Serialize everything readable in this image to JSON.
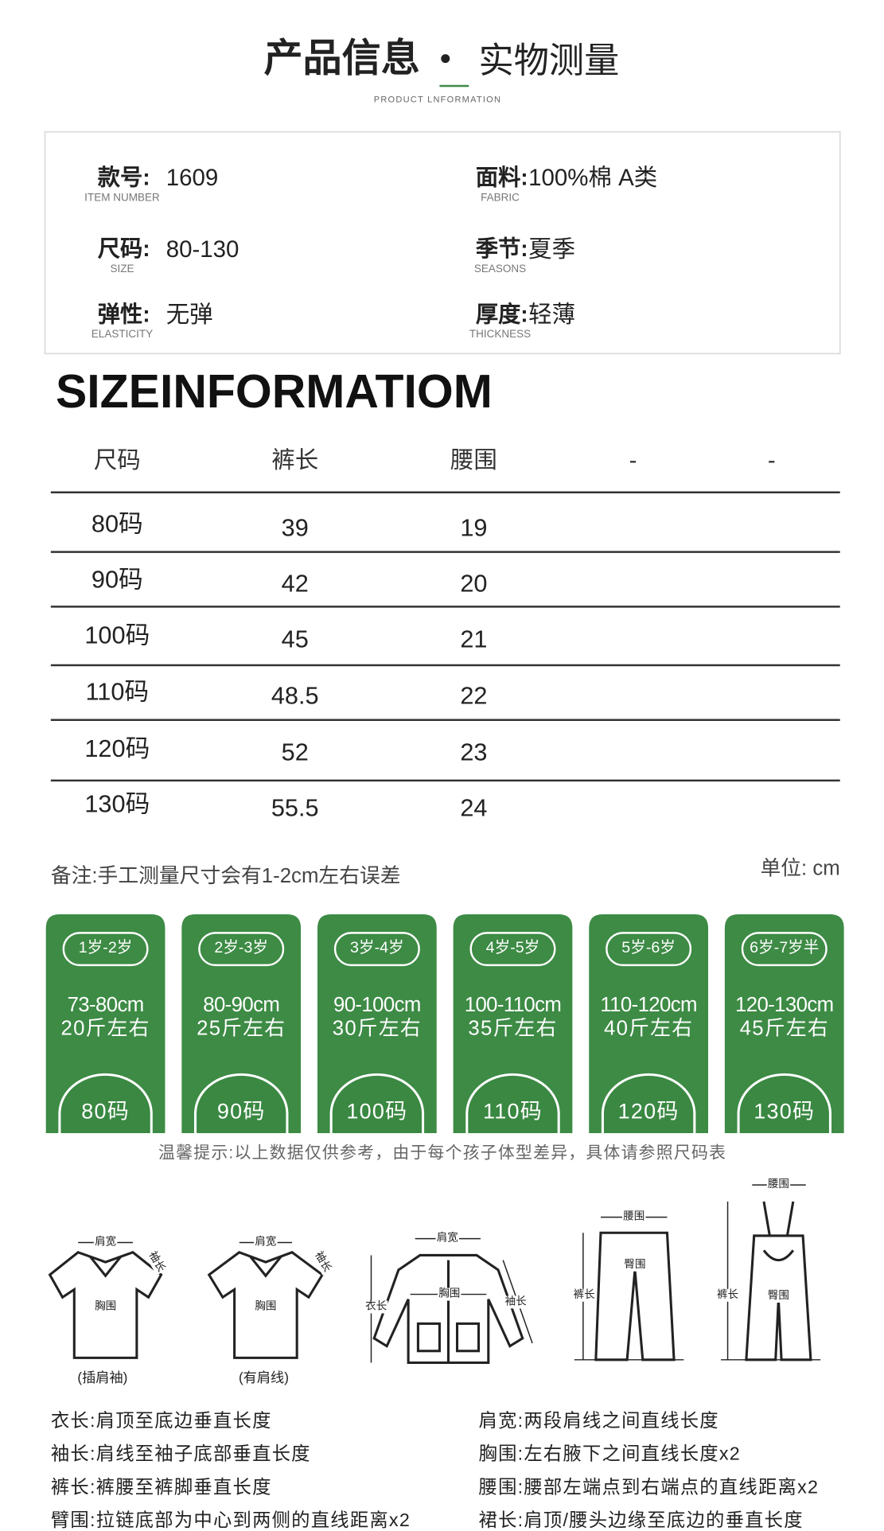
{
  "header": {
    "title": "产品信息",
    "subtitle": "实物测量",
    "english": "PRODUCT LNFORMATION"
  },
  "info": [
    {
      "label": "款号:",
      "english": "ITEM NUMBER",
      "value": "1609"
    },
    {
      "label": "面料:",
      "english": "FABRIC",
      "value": "100%棉  A类"
    },
    {
      "label": "尺码:",
      "english": "SIZE",
      "value": "80-130"
    },
    {
      "label": "季节:",
      "english": "SEASONS",
      "value": "夏季"
    },
    {
      "label": "弹性:",
      "english": "ELASTICITY",
      "value": "无弹"
    },
    {
      "label": "厚度:",
      "english": "THICKNESS",
      "value": "轻薄"
    }
  ],
  "size_table": {
    "title": "SIZEINFORMATIOM",
    "headers": [
      "尺码",
      "裤长",
      "腰围",
      "-",
      "-"
    ],
    "rows": [
      [
        "80码",
        "39",
        "19"
      ],
      [
        "90码",
        "42",
        "20"
      ],
      [
        "100码",
        "45",
        "21"
      ],
      [
        "110码",
        "48.5",
        "22"
      ],
      [
        "120码",
        "52",
        "23"
      ],
      [
        "130码",
        "55.5",
        "24"
      ]
    ]
  },
  "note": "备注:手工测量尺寸会有1-2cm左右误差",
  "unit": "单位: cm",
  "cards": [
    {
      "age": "1岁-2岁",
      "height": "73-80cm",
      "weight": "20斤左右",
      "size": "80码"
    },
    {
      "age": "2岁-3岁",
      "height": "80-90cm",
      "weight": "25斤左右",
      "size": "90码"
    },
    {
      "age": "3岁-4岁",
      "height": "90-100cm",
      "weight": "30斤左右",
      "size": "100码"
    },
    {
      "age": "4岁-5岁",
      "height": "100-110cm",
      "weight": "35斤左右",
      "size": "110码"
    },
    {
      "age": "5岁-6岁",
      "height": "110-120cm",
      "weight": "40斤左右",
      "size": "120码"
    },
    {
      "age": "6岁-7岁半",
      "height": "120-130cm",
      "weight": "45斤左右",
      "size": "130码"
    }
  ],
  "tip": "温馨提示:以上数据仅供参考，由于每个孩子体型差异，具体请参照尺码表",
  "diagrams": [
    {
      "caption": "(插肩袖)",
      "labels": [
        "肩宽",
        "袖长",
        "胸围"
      ]
    },
    {
      "caption": "(有肩线)",
      "labels": [
        "肩宽",
        "袖长",
        "胸围"
      ]
    },
    {
      "labels": [
        "肩宽",
        "衣长",
        "胸围",
        "袖长"
      ]
    },
    {
      "labels": [
        "腰围",
        "裤长",
        "臀围"
      ]
    },
    {
      "labels": [
        "腰围",
        "裤长",
        "臀围"
      ]
    }
  ],
  "definitions": [
    "衣长:肩顶至底边垂直长度",
    "肩宽:两段肩线之间直线长度",
    "袖长:肩线至袖子底部垂直长度",
    "胸围:左右腋下之间直线长度x2",
    "裤长:裤腰至裤脚垂直长度",
    "腰围:腰部左端点到右端点的直线距离x2",
    "臂围:拉链底部为中心到两侧的直线距离x2",
    "裙长:肩顶/腰头边缘至底边的垂直长度"
  ]
}
